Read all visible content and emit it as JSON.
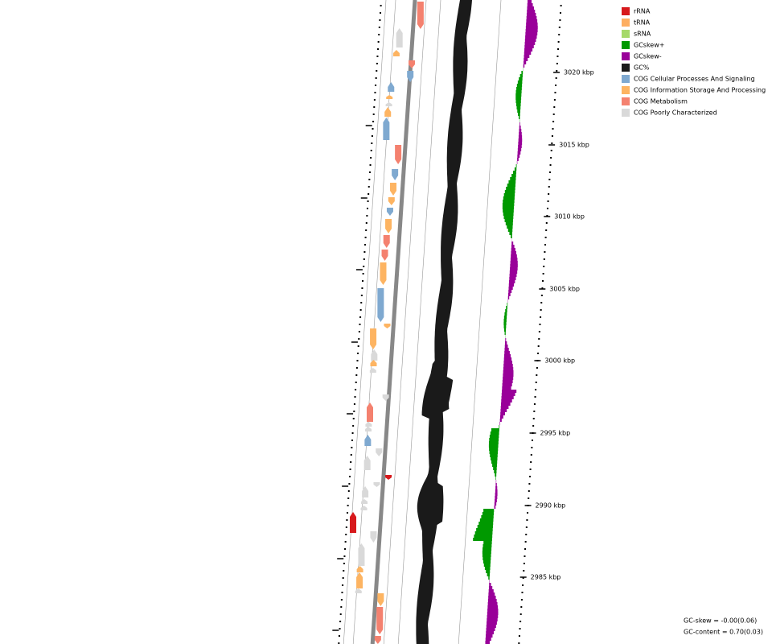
{
  "legend": [
    {
      "label": "rRNA",
      "color": "#d7191c"
    },
    {
      "label": "tRNA",
      "color": "#fdae61"
    },
    {
      "label": "sRNA",
      "color": "#a6d96a"
    },
    {
      "label": "GCskew+",
      "color": "#009900"
    },
    {
      "label": "GCskew-",
      "color": "#990099"
    },
    {
      "label": "GC%",
      "color": "#1a1a1a"
    },
    {
      "label": "COG Cellular Processes And Signaling",
      "color": "#7fa9d0"
    },
    {
      "label": "COG Information Storage And Processing",
      "color": "#fdb462"
    },
    {
      "label": "COG Metabolism",
      "color": "#f4816f"
    },
    {
      "label": "COG Poorly Characterized",
      "color": "#d9d9d9"
    }
  ],
  "scale_labels": [
    "3020 kbp",
    "3015 kbp",
    "3010 kbp",
    "3005 kbp",
    "3000 kbp",
    "2995 kbp",
    "2990 kbp",
    "2985 kbp"
  ],
  "stats": [
    "GC-skew = -0.00(0.06)",
    "GC-content = 0.70(0.03)"
  ]
}
